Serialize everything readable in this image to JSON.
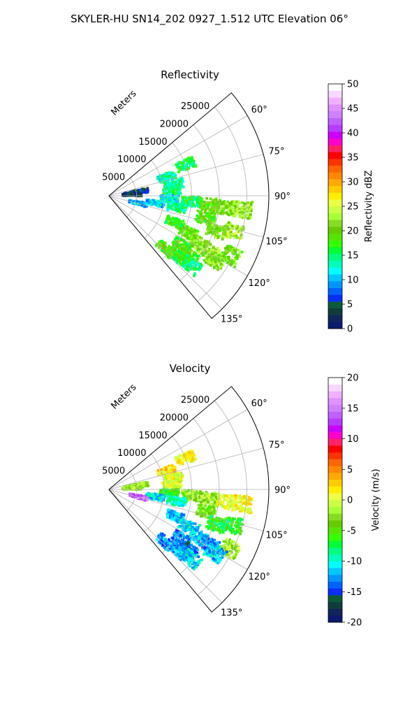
{
  "figure": {
    "suptitle": "SKYLER-HU  SN14_202  0927_1.512 UTC Elevation 06°"
  },
  "colors": {
    "reflectivity_bands": [
      "#0b1a6e",
      "#12245c",
      "#0f3b3b",
      "#0b5a3a",
      "#0a2cff",
      "#0062ff",
      "#0095ff",
      "#00c8ff",
      "#00ffff",
      "#00ffbb",
      "#00ff7f",
      "#00ff33",
      "#33ff00",
      "#55e600",
      "#66cc00",
      "#88dd22",
      "#aaff33",
      "#ccff44",
      "#eeff44",
      "#ffee00",
      "#ffcc00",
      "#ffaa00",
      "#ff8800",
      "#ff6600",
      "#ff3300",
      "#ff0000",
      "#ff2266",
      "#ff00cc",
      "#cc00ff",
      "#b83cff",
      "#c060ff",
      "#d080ff",
      "#e090ff",
      "#f0b0ff",
      "#f8d8ff",
      "#ffffff"
    ],
    "velocity_bands": [
      "#0b1a6e",
      "#12245c",
      "#0f3b3b",
      "#0b5a3a",
      "#0a2cff",
      "#0062ff",
      "#0095ff",
      "#00c8ff",
      "#00ffff",
      "#00ffbb",
      "#00ff7f",
      "#00ff33",
      "#33ff00",
      "#55e600",
      "#66cc00",
      "#88dd22",
      "#aaff33",
      "#ccff44",
      "#eeff44",
      "#ffee00",
      "#ffcc00",
      "#ffaa00",
      "#ff8800",
      "#ff6600",
      "#ff3300",
      "#ff0000",
      "#ff2266",
      "#ff00cc",
      "#cc00ff",
      "#b83cff",
      "#c060ff",
      "#d080ff",
      "#e090ff",
      "#f0b0ff",
      "#f8d8ff",
      "#ffffff"
    ]
  },
  "chart_data": [
    {
      "type": "heatmap",
      "projection": "polar-sector",
      "title": "Reflectivity",
      "radial_label": "Meters",
      "radial_ticks": [
        5000,
        10000,
        15000,
        20000,
        25000
      ],
      "radial_range": [
        0,
        29000
      ],
      "theta_ticks": [
        "60°",
        "75°",
        "90°",
        "105°",
        "120°",
        "135°"
      ],
      "theta_tick_values": [
        60,
        75,
        90,
        105,
        120,
        135
      ],
      "theta_range": [
        50,
        140
      ],
      "grid": true,
      "colorbar": {
        "label": "Reflectivity dBZ",
        "range": [
          0,
          50
        ],
        "ticks": [
          "0",
          "5",
          "10",
          "15",
          "20",
          "25",
          "30",
          "35",
          "40",
          "45",
          "50"
        ]
      },
      "echo_regions": [
        {
          "az": 72,
          "r": 11000,
          "value": 13
        },
        {
          "az": 68,
          "r": 15000,
          "value": 16
        },
        {
          "az": 80,
          "r": 12000,
          "value": 14
        },
        {
          "az": 85,
          "r": 11500,
          "value": 15
        },
        {
          "az": 83,
          "r": 4500,
          "value": 4
        },
        {
          "az": 82,
          "r": 5500,
          "value": 5
        },
        {
          "az": 87,
          "r": 4200,
          "value": 3
        },
        {
          "az": 93,
          "r": 11000,
          "value": 12
        },
        {
          "az": 94,
          "r": 15000,
          "value": 16
        },
        {
          "az": 95,
          "r": 18500,
          "value": 20
        },
        {
          "az": 96,
          "r": 21500,
          "value": 21
        },
        {
          "az": 96,
          "r": 24500,
          "value": 22
        },
        {
          "az": 99,
          "r": 8500,
          "value": 11
        },
        {
          "az": 100,
          "r": 12500,
          "value": 14
        },
        {
          "az": 103,
          "r": 18000,
          "value": 19
        },
        {
          "az": 106,
          "r": 23500,
          "value": 23
        },
        {
          "az": 108,
          "r": 20500,
          "value": 21
        },
        {
          "az": 104,
          "r": 5500,
          "value": 10
        },
        {
          "az": 112,
          "r": 13000,
          "value": 17
        },
        {
          "az": 115,
          "r": 16000,
          "value": 20
        },
        {
          "az": 118,
          "r": 18500,
          "value": 21
        },
        {
          "az": 119,
          "r": 21000,
          "value": 22
        },
        {
          "az": 116,
          "r": 24500,
          "value": 20
        },
        {
          "az": 121,
          "r": 22500,
          "value": 21
        },
        {
          "az": 124,
          "r": 16000,
          "value": 18
        },
        {
          "az": 127,
          "r": 18000,
          "value": 19
        },
        {
          "az": 130,
          "r": 19500,
          "value": 15
        },
        {
          "az": 131,
          "r": 16500,
          "value": 17
        },
        {
          "az": 133,
          "r": 14000,
          "value": 19
        }
      ]
    },
    {
      "type": "heatmap",
      "projection": "polar-sector",
      "title": "Velocity",
      "radial_label": "Meters",
      "radial_ticks": [
        5000,
        10000,
        15000,
        20000,
        25000
      ],
      "radial_range": [
        0,
        29000
      ],
      "theta_ticks": [
        "60°",
        "75°",
        "90°",
        "105°",
        "120°",
        "135°"
      ],
      "theta_tick_values": [
        60,
        75,
        90,
        105,
        120,
        135
      ],
      "theta_range": [
        50,
        140
      ],
      "grid": true,
      "colorbar": {
        "label": "Velocity (m/s)",
        "range": [
          -20,
          20
        ],
        "ticks": [
          "-20",
          "-15",
          "-10",
          "-5",
          "0",
          "5",
          "10",
          "15",
          "20"
        ]
      },
      "echo_regions": [
        {
          "az": 72,
          "r": 11000,
          "value": 2
        },
        {
          "az": 68,
          "r": 15000,
          "value": 1
        },
        {
          "az": 80,
          "r": 12000,
          "value": 0
        },
        {
          "az": 85,
          "r": 11500,
          "value": 0
        },
        {
          "az": 83,
          "r": 4500,
          "value": -3
        },
        {
          "az": 82,
          "r": 5500,
          "value": -2
        },
        {
          "az": 87,
          "r": 4200,
          "value": -2
        },
        {
          "az": 93,
          "r": 11000,
          "value": -6
        },
        {
          "az": 94,
          "r": 15000,
          "value": -3
        },
        {
          "az": 95,
          "r": 18500,
          "value": -2
        },
        {
          "az": 96,
          "r": 21500,
          "value": 0
        },
        {
          "az": 96,
          "r": 24500,
          "value": 1
        },
        {
          "az": 99,
          "r": 8500,
          "value": -11
        },
        {
          "az": 100,
          "r": 12500,
          "value": -9
        },
        {
          "az": 103,
          "r": 18000,
          "value": -4
        },
        {
          "az": 106,
          "r": 23500,
          "value": -6
        },
        {
          "az": 108,
          "r": 20500,
          "value": -7
        },
        {
          "az": 104,
          "r": 5500,
          "value": 14
        },
        {
          "az": 112,
          "r": 13000,
          "value": -12
        },
        {
          "az": 115,
          "r": 16000,
          "value": -11
        },
        {
          "az": 118,
          "r": 18500,
          "value": -12
        },
        {
          "az": 119,
          "r": 21000,
          "value": -13
        },
        {
          "az": 116,
          "r": 24500,
          "value": -2
        },
        {
          "az": 121,
          "r": 22500,
          "value": -12
        },
        {
          "az": 124,
          "r": 16000,
          "value": -13
        },
        {
          "az": 127,
          "r": 18000,
          "value": -14
        },
        {
          "az": 130,
          "r": 19500,
          "value": -11
        },
        {
          "az": 131,
          "r": 16500,
          "value": -12
        },
        {
          "az": 133,
          "r": 14000,
          "value": -13
        }
      ]
    }
  ]
}
